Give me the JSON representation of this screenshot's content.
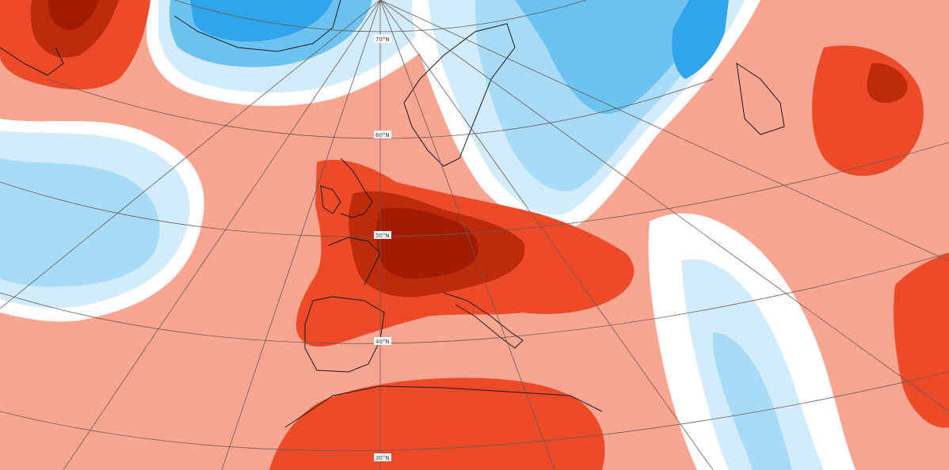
{
  "map": {
    "latitude_labels": [
      "70°N",
      "60°N",
      "50°N",
      "40°N",
      "30°N"
    ],
    "palette": {
      "red_darkest": "#a31a05",
      "red_dark": "#bd2a0c",
      "red": "#ec4a28",
      "red_medium": "#f3836c",
      "red_light": "#f8a592",
      "red_pale": "#fbc7bb",
      "white": "#ffffff",
      "blue_pale": "#d3ecfb",
      "blue_light": "#a8dbf7",
      "blue": "#6cc3f2",
      "blue_dark": "#31a5ec",
      "blue_darkest": "#0f6fb4",
      "coast": "#1a1a1a",
      "graticule": "#6a5a55"
    }
  }
}
